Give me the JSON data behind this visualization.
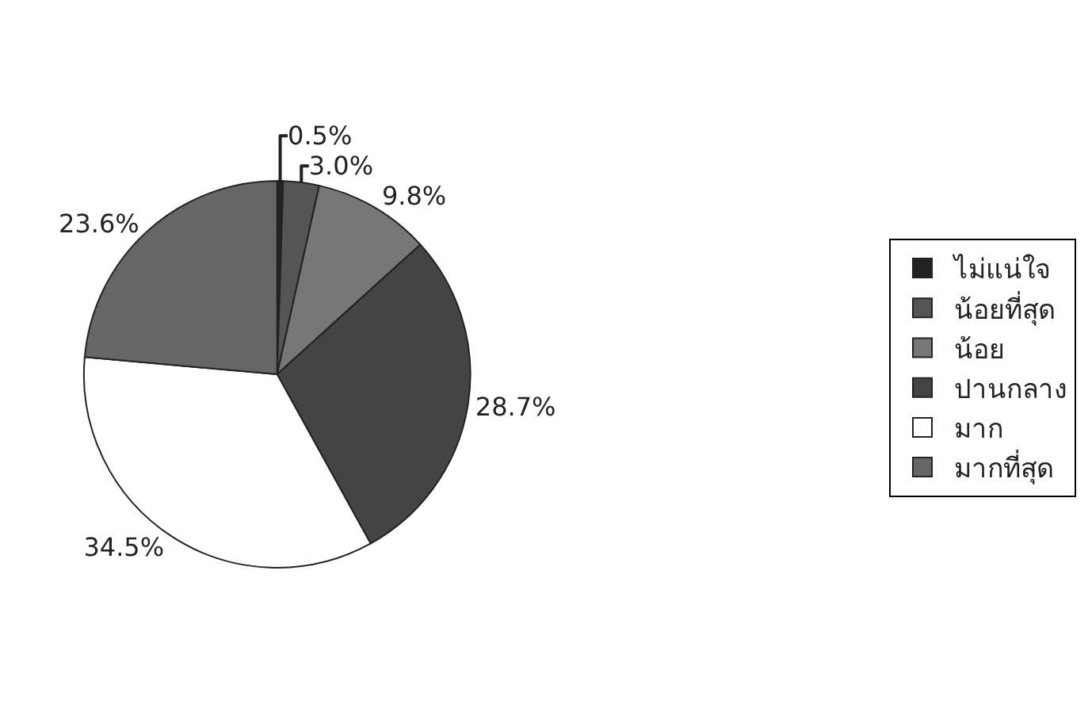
{
  "chart_data": {
    "type": "pie",
    "categories": [
      "ไม่แน่ใจ",
      "น้อยที่สุด",
      "น้อย",
      "ปานกลาง",
      "มาก",
      "มากที่สุด"
    ],
    "values": [
      0.5,
      3.0,
      9.8,
      28.7,
      34.5,
      23.6
    ],
    "value_labels": [
      "0.5%",
      "3.0%",
      "9.8%",
      "28.7%",
      "34.5%",
      "23.6%"
    ],
    "colors": [
      "#222222",
      "#555555",
      "#777777",
      "#444444",
      "#ffffff",
      "#666666"
    ],
    "legend": "right"
  }
}
